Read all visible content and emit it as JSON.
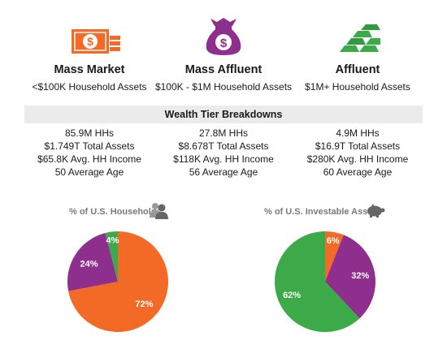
{
  "tiers": [
    {
      "name": "Mass Market",
      "range": "<$100K Household Assets",
      "icon": "money-stack-icon",
      "color": "#f26a25",
      "stats": [
        "85.9M HHs",
        "$1.749T Total Assets",
        "$65.8K  Avg. HH Income",
        "50 Average Age"
      ]
    },
    {
      "name": "Mass Affluent",
      "range": "$100K - $1M Household Assets",
      "icon": "money-bag-icon",
      "color": "#8e2f8e",
      "stats": [
        "27.8M HHs",
        "$8.678T Total Assets",
        "$118K  Avg. HH Income",
        "56 Average Age"
      ]
    },
    {
      "name": "Affluent",
      "range": "$1M+ Household Assets",
      "icon": "gold-bars-icon",
      "color": "#3daa4a",
      "stats": [
        "4.9M HHs",
        "$16.9T Total Assets",
        "$280K  Avg. HH Income",
        "60 Average Age"
      ]
    }
  ],
  "banner": {
    "title": "Wealth Tier Breakdowns"
  },
  "colors": {
    "mass_market": "#f26a25",
    "mass_affluent": "#8e2f8e",
    "affluent": "#3daa4a",
    "banner_bg": "#ebebeb"
  },
  "chart_data": [
    {
      "type": "pie",
      "title": "% of U.S. Households",
      "icon": "people-icon",
      "categories": [
        "Mass Market",
        "Mass Affluent",
        "Affluent"
      ],
      "values": [
        72,
        24,
        4
      ],
      "labels": [
        "72%",
        "24%",
        "4%"
      ]
    },
    {
      "type": "pie",
      "title": "% of U.S. Investable Assets",
      "icon": "piggy-bank-icon",
      "categories": [
        "Mass Market",
        "Mass Affluent",
        "Affluent"
      ],
      "values": [
        6,
        32,
        62
      ],
      "labels": [
        "6%",
        "32%",
        "62%"
      ]
    }
  ]
}
